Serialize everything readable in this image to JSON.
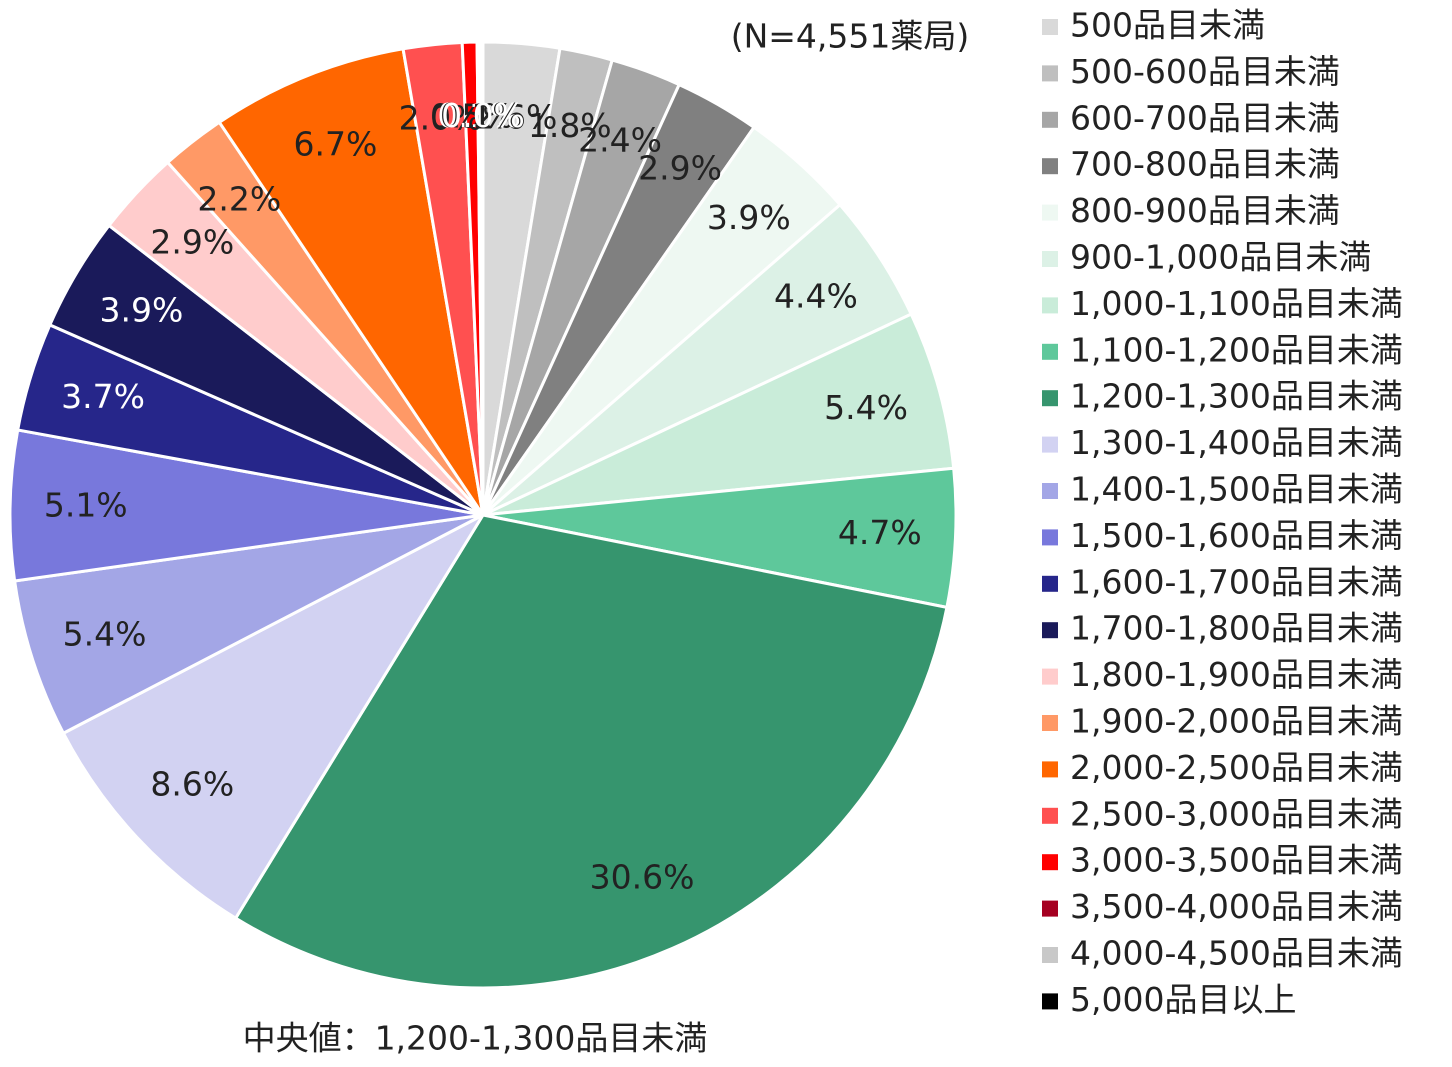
{
  "chart_data": {
    "type": "pie",
    "annotations": [
      "(N=4,551薬局)",
      "中央値：1,200-1,300品目未満"
    ],
    "categories": [
      "500品目未満",
      "500-600品目未満",
      "600-700品目未満",
      "700-800品目未満",
      "800-900品目未満",
      "900-1,000品目未満",
      "1,000-1,100品目未満",
      "1,100-1,200品目未満",
      "1,200-1,300品目未満",
      "1,300-1,400品目未満",
      "1,400-1,500品目未満",
      "1,500-1,600品目未満",
      "1,600-1,700品目未満",
      "1,700-1,800品目未満",
      "1,800-1,900品目未満",
      "1,900-2,000品目未満",
      "2,000-2,500品目未満",
      "2,500-3,000品目未満",
      "3,000-3,500品目未満",
      "3,500-4,000品目未満",
      "4,000-4,500品目未満",
      "5,000品目以上"
    ],
    "values": [
      2.6,
      1.8,
      2.4,
      2.9,
      3.9,
      4.4,
      5.4,
      4.7,
      30.6,
      8.6,
      5.4,
      5.1,
      3.7,
      3.9,
      2.9,
      2.2,
      6.7,
      2.0,
      0.5,
      0.1,
      0.1,
      0.0
    ],
    "value_labels": [
      "2.6%",
      "1.8%",
      "2.4%",
      "2.9%",
      "3.9%",
      "4.4%",
      "5.4%",
      "4.7%",
      "30.6%",
      "8.6%",
      "5.4%",
      "5.1%",
      "3.7%",
      "3.9%",
      "2.9%",
      "2.2%",
      "6.7%",
      "2.0%",
      "0.5%",
      "0.1%",
      "0.1%",
      "0.0%"
    ],
    "colors": [
      "#d9d9d9",
      "#bfbfbf",
      "#a6a6a6",
      "#808080",
      "#eef8f2",
      "#dcf1e6",
      "#c9ecd9",
      "#5ec89b",
      "#36956e",
      "#d2d2f2",
      "#a3a6e6",
      "#7878dc",
      "#26268a",
      "#1a1a5a",
      "#ffcccc",
      "#ff9966",
      "#ff6600",
      "#ff5050",
      "#ff0000",
      "#a50021",
      "#c8c8c8",
      "#000000"
    ],
    "legend": "right"
  }
}
